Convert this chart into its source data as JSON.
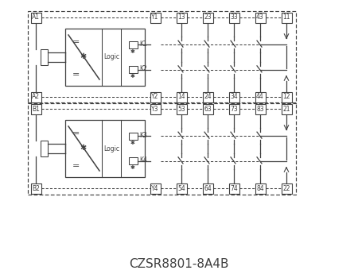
{
  "title": "CZSR8801-8A4B",
  "bg_color": "#ffffff",
  "line_color": "#404040",
  "dashed_color": "#404040",
  "top_row1_labels": [
    "Y1",
    "13",
    "23",
    "33",
    "43",
    "11"
  ],
  "top_row2_labels": [
    "Y2",
    "14",
    "24",
    "34",
    "44",
    "12"
  ],
  "bot_row1_labels": [
    "Y3",
    "53",
    "63",
    "73",
    "83",
    "21"
  ],
  "bot_row2_labels": [
    "Y4",
    "54",
    "64",
    "74",
    "84",
    "22"
  ],
  "left_top_labels": [
    "A1",
    "A2"
  ],
  "left_bot_labels": [
    "B1",
    "B2"
  ],
  "relay_labels_top": [
    "K1",
    "K2"
  ],
  "relay_labels_bot": [
    "K3",
    "K4"
  ],
  "fig_w": 4.5,
  "fig_h": 3.5,
  "dpi": 100
}
